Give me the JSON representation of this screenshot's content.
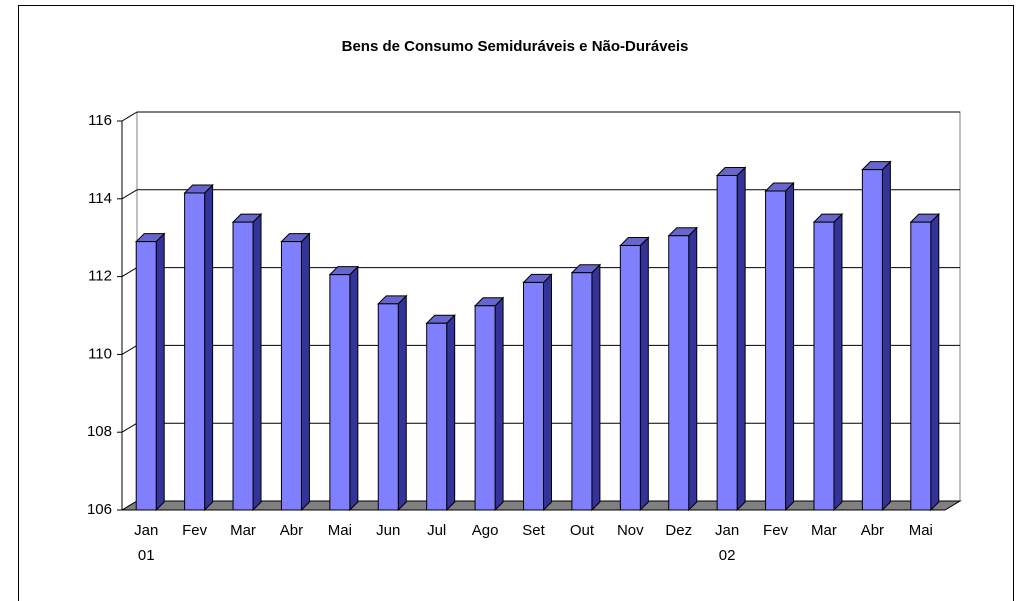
{
  "chart_data": {
    "type": "bar3d",
    "title": "Bens de Consumo Semiduráveis e Não-Duráveis",
    "categories": [
      "Jan",
      "Fev",
      "Mar",
      "Abr",
      "Mai",
      "Jun",
      "Jul",
      "Ago",
      "Set",
      "Out",
      "Nov",
      "Dez",
      "Jan",
      "Fev",
      "Mar",
      "Abr",
      "Mai"
    ],
    "x_group_labels": [
      "01",
      null,
      null,
      null,
      null,
      null,
      null,
      null,
      null,
      null,
      null,
      null,
      "02",
      null,
      null,
      null,
      null
    ],
    "values": [
      112.9,
      114.15,
      113.4,
      112.9,
      112.05,
      111.3,
      110.8,
      111.25,
      111.85,
      112.1,
      112.8,
      113.05,
      114.6,
      114.2,
      113.4,
      114.75,
      113.4
    ],
    "color": "#8080ff",
    "ylim": [
      106,
      116
    ],
    "yticks": [
      106,
      108,
      110,
      112,
      114,
      116
    ],
    "grid": true
  }
}
